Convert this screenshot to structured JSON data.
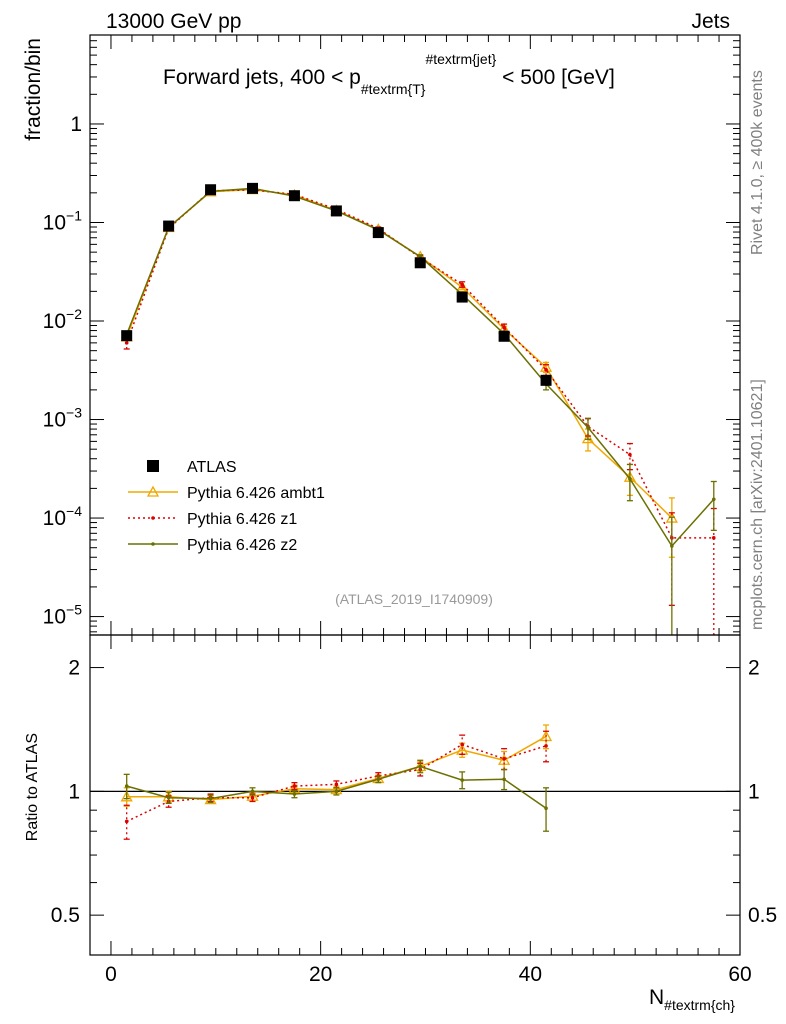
{
  "header": {
    "energy_label": "13000 GeV pp",
    "category_label": "Jets"
  },
  "side_labels": {
    "rivet": "Rivet 4.1.0, ≥ 400k events",
    "mcplots": "mcplots.cern.ch [arXiv:2401.10621]"
  },
  "chart_data": {
    "type": "line",
    "title": "Forward jets, 400 < p_{#textrm{T}}^{#textrm{jet}} < 500 [GeV]",
    "title_parts": {
      "prefix": "Forward jets, 400 < p",
      "subscript": "#textrm{T}",
      "superscript": "#textrm{jet}",
      "suffix": " < 500 [GeV]"
    },
    "analysis_id": "(ATLAS_2019_I1740909)",
    "xlabel_main": "N",
    "xlabel_sub": "#textrm{ch}",
    "xlim": [
      -2,
      60
    ],
    "xticks": [
      0,
      20,
      40,
      60
    ],
    "main_panel": {
      "ylabel": "fraction/bin",
      "yscale": "log",
      "ylim": [
        6.5e-06,
        8
      ],
      "yticks": [
        {
          "value": 1,
          "base": "1",
          "exp": ""
        },
        {
          "value": 0.1,
          "base": "10",
          "exp": "−1"
        },
        {
          "value": 0.01,
          "base": "10",
          "exp": "−2"
        },
        {
          "value": 0.001,
          "base": "10",
          "exp": "−3"
        },
        {
          "value": 0.0001,
          "base": "10",
          "exp": "−4"
        },
        {
          "value": 1e-05,
          "base": "10",
          "exp": "−5"
        }
      ]
    },
    "ratio_panel": {
      "ylabel": "Ratio to ATLAS",
      "yscale": "log",
      "ylim": [
        0.4,
        2.4
      ],
      "yticks": [
        {
          "value": 0.5,
          "label": "0.5"
        },
        {
          "value": 1,
          "label": "1"
        },
        {
          "value": 2,
          "label": "2"
        }
      ]
    },
    "data": {
      "name": "ATLAS",
      "color": "#000000",
      "x": [
        1.5,
        5.5,
        9.5,
        13.5,
        17.5,
        21.5,
        25.5,
        29.5,
        33.5,
        37.5,
        41.5
      ],
      "y": [
        0.0071,
        0.092,
        0.215,
        0.222,
        0.187,
        0.131,
        0.079,
        0.039,
        0.0175,
        0.007,
        0.0025
      ],
      "yerr": [
        0.0004,
        0.003,
        0.006,
        0.006,
        0.005,
        0.004,
        0.003,
        0.0015,
        0.0008,
        0.0004,
        0.0003
      ]
    },
    "series": [
      {
        "name": "Pythia 6.426 ambt1",
        "color": "#f0a800",
        "marker": "triangle",
        "linestyle": "solid",
        "x": [
          1.5,
          5.5,
          9.5,
          13.5,
          17.5,
          21.5,
          25.5,
          29.5,
          33.5,
          37.5,
          41.5,
          45.5,
          49.5,
          53.5
        ],
        "y": [
          0.0069,
          0.089,
          0.205,
          0.216,
          0.19,
          0.132,
          0.085,
          0.045,
          0.022,
          0.0083,
          0.0034,
          0.00064,
          0.00026,
          0.0001
        ],
        "yerr": [
          0.0004,
          0.003,
          0.005,
          0.005,
          0.004,
          0.003,
          0.003,
          0.002,
          0.001,
          0.0005,
          0.0004,
          0.00016,
          9e-05,
          6e-05
        ],
        "ratio": [
          0.97,
          0.97,
          0.955,
          0.973,
          1.015,
          1.01,
          1.075,
          1.15,
          1.26,
          1.19,
          1.36
        ],
        "ratio_err": [
          0.05,
          0.03,
          0.02,
          0.02,
          0.02,
          0.02,
          0.02,
          0.03,
          0.05,
          0.06,
          0.09
        ]
      },
      {
        "name": "Pythia 6.426 z1",
        "color": "#dd0000",
        "marker": "dot",
        "linestyle": "dotted",
        "x": [
          1.5,
          5.5,
          9.5,
          13.5,
          17.5,
          21.5,
          25.5,
          29.5,
          33.5,
          37.5,
          41.5,
          45.5,
          49.5,
          53.5,
          57.5
        ],
        "y": [
          0.006,
          0.087,
          0.21,
          0.214,
          0.193,
          0.136,
          0.087,
          0.044,
          0.0235,
          0.0086,
          0.0032,
          0.00085,
          0.00044,
          6.3e-05,
          6.3e-05
        ],
        "yerr": [
          0.0008,
          0.003,
          0.005,
          0.005,
          0.004,
          0.003,
          0.003,
          0.002,
          0.0015,
          0.0007,
          0.0004,
          0.00017,
          0.00013,
          5e-05,
          6.2e-05
        ],
        "ratio": [
          0.845,
          0.945,
          0.965,
          0.965,
          1.03,
          1.04,
          1.09,
          1.13,
          1.3,
          1.2,
          1.29
        ],
        "ratio_err": [
          0.08,
          0.03,
          0.02,
          0.02,
          0.02,
          0.02,
          0.02,
          0.04,
          0.07,
          0.07,
          0.11
        ]
      },
      {
        "name": "Pythia 6.426 z2",
        "color": "#6b7000",
        "marker": "dot",
        "linestyle": "solid",
        "x": [
          1.5,
          5.5,
          9.5,
          13.5,
          17.5,
          21.5,
          25.5,
          29.5,
          33.5,
          37.5,
          41.5,
          45.5,
          49.5,
          53.5,
          57.5
        ],
        "y": [
          0.0073,
          0.089,
          0.207,
          0.222,
          0.185,
          0.131,
          0.084,
          0.045,
          0.0186,
          0.0074,
          0.0023,
          0.00083,
          0.00025,
          5.2e-05,
          0.000155
        ],
        "yerr": [
          0.0004,
          0.003,
          0.005,
          0.005,
          0.004,
          0.003,
          0.003,
          0.002,
          0.001,
          0.0005,
          0.0003,
          0.0002,
          0.0001,
          5e-05,
          8e-05
        ],
        "ratio": [
          1.03,
          0.965,
          0.96,
          1.0,
          0.985,
          1.0,
          1.07,
          1.15,
          1.065,
          1.07,
          0.91
        ],
        "ratio_err": [
          0.07,
          0.03,
          0.02,
          0.02,
          0.02,
          0.02,
          0.02,
          0.04,
          0.05,
          0.06,
          0.11
        ]
      }
    ],
    "legend_position": "lower-left"
  }
}
